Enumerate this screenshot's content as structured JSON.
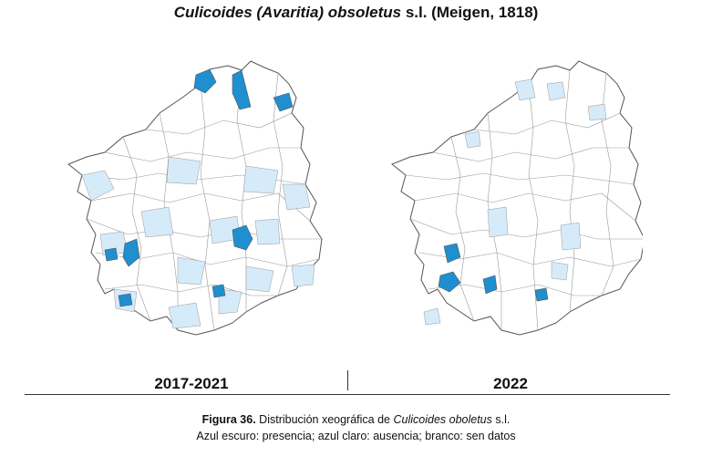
{
  "title": {
    "species": "Culicoides (Avaritia) obsoletus",
    "suffix": "s.l. (Meigen, 1818)"
  },
  "maps": {
    "left_period": "2017-2021",
    "right_period": "2022"
  },
  "legend_colors": {
    "presence": "#1f8fd0",
    "absence": "#d6ebf9",
    "no_data": "#ffffff",
    "boundary": "#777777"
  },
  "caption": {
    "figure_label": "Figura 36.",
    "text": "Distribución xeográfica de",
    "species": "Culicoides oboletus",
    "suffix": "s.l.",
    "legend_line": "Azul escuro: presencia; azul claro: ausencia; branco: sen datos"
  }
}
